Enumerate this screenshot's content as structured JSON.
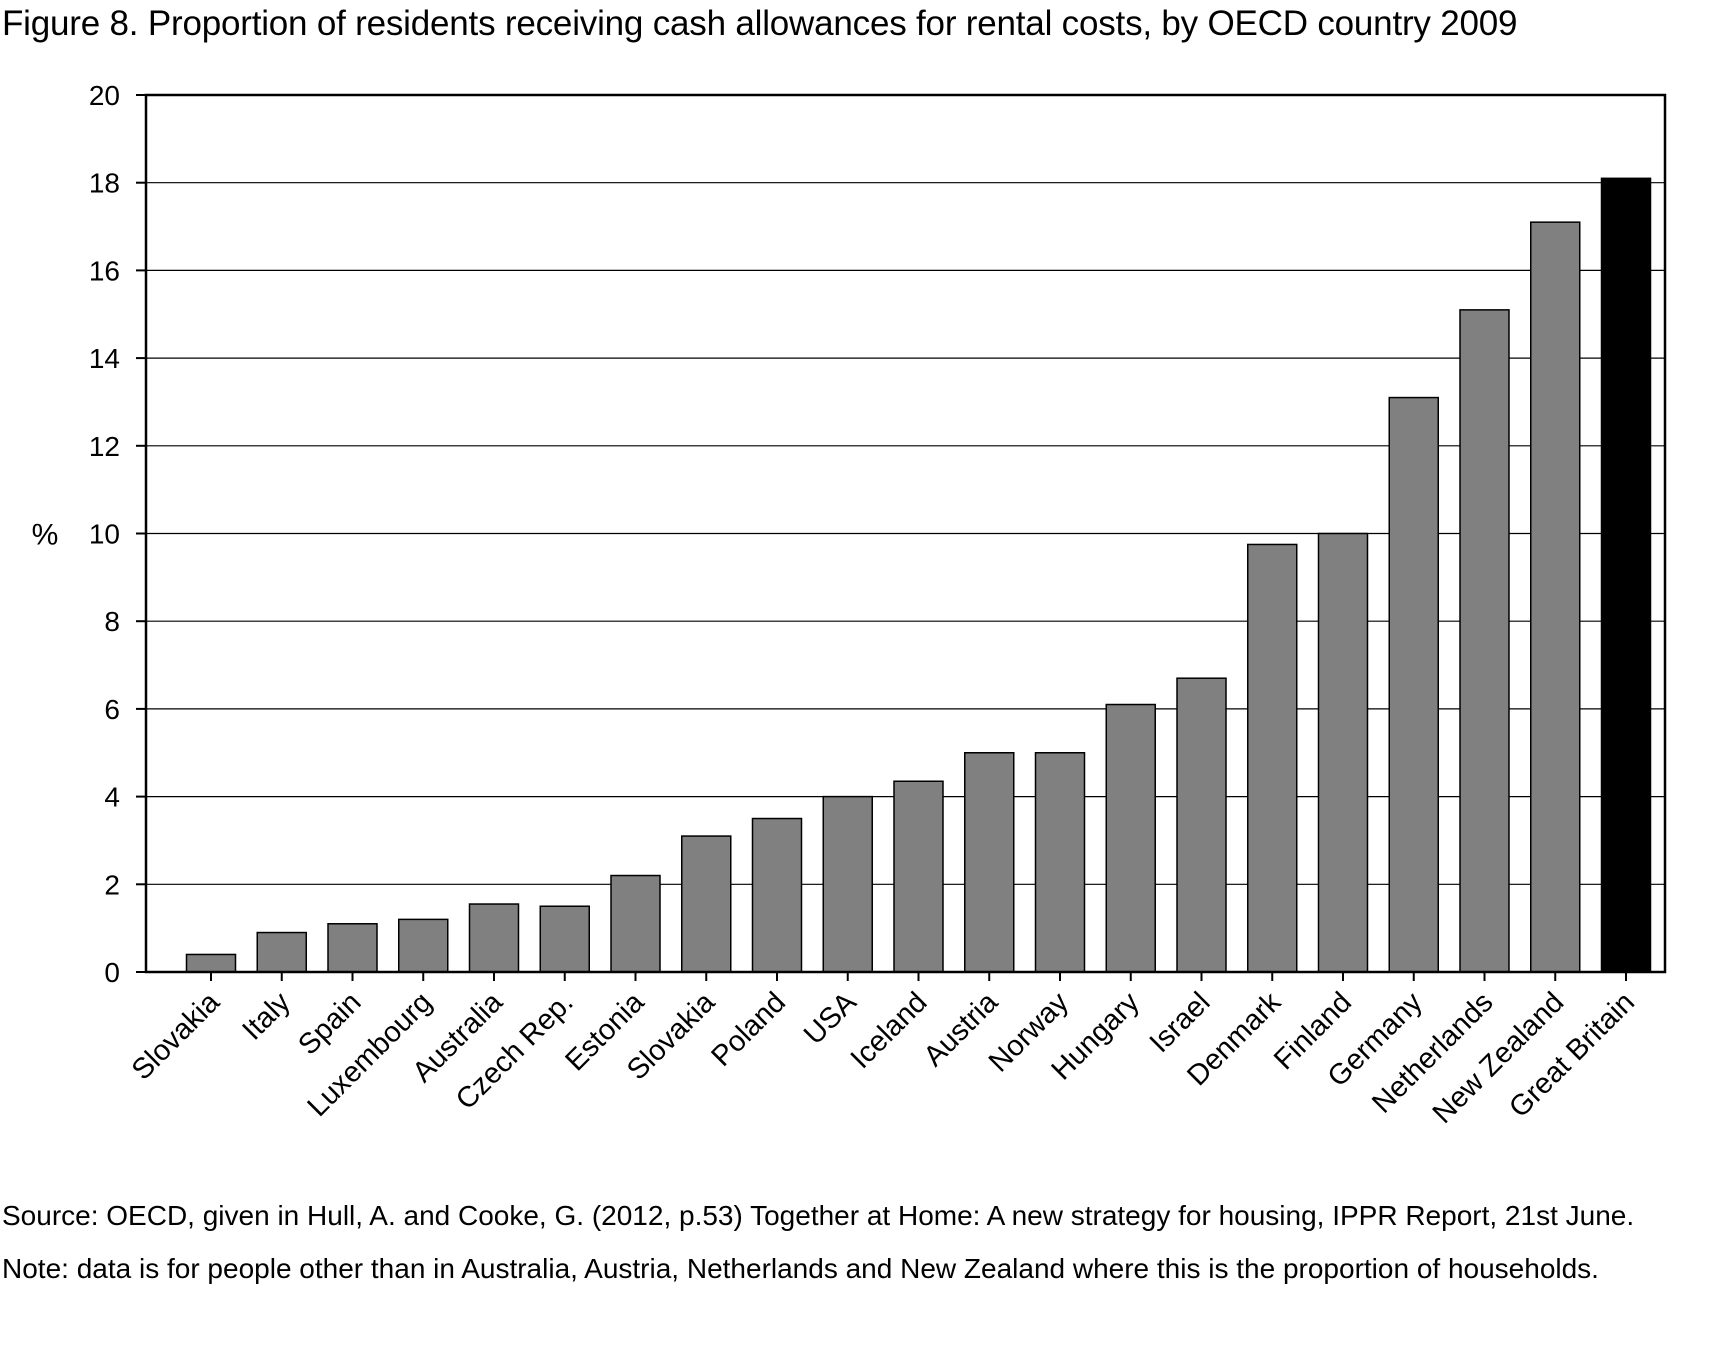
{
  "chart_data": {
    "type": "bar",
    "title": "Figure 8.  Proportion of residents receiving cash allowances for rental costs, by OECD country 2009",
    "xlabel": "",
    "ylabel": "%",
    "ylim": [
      0,
      20
    ],
    "yticks": [
      "0",
      "2",
      "4",
      "6",
      "8",
      "10",
      "12",
      "14",
      "16",
      "18",
      "20"
    ],
    "grid": "horizontal",
    "legend": "none",
    "categories": [
      "Slovakia",
      "Italy",
      "Spain",
      "Luxembourg",
      "Australia",
      "Czech Rep.",
      "Estonia",
      "Slovakia",
      "Poland",
      "USA",
      "Iceland",
      "Austria",
      "Norway",
      "Hungary",
      "Israel",
      "Denmark",
      "Finland",
      "Germany",
      "Netherlands",
      "New Zealand",
      "Great Britain"
    ],
    "values": [
      0.4,
      0.9,
      1.1,
      1.2,
      1.55,
      1.5,
      2.2,
      3.1,
      3.5,
      4.0,
      4.35,
      5.0,
      5.0,
      6.1,
      6.7,
      9.75,
      10.0,
      13.1,
      15.1,
      17.1,
      18.1
    ],
    "colors": {
      "default_bar": "#808080",
      "highlight_bar": "#000000",
      "highlight_category": "Great Britain",
      "grid": "#000000",
      "axis": "#000000"
    }
  },
  "footer": {
    "source": "Source:  OECD, given in Hull, A. and Cooke, G. (2012, p.53) Together at Home: A new strategy for housing, IPPR Report, 21st June.",
    "note": "Note:  data is for  people other than in Australia, Austria, Netherlands and New Zealand where this is the proportion of households."
  }
}
